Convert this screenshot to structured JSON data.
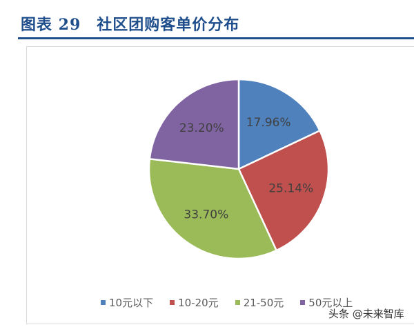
{
  "header": {
    "title": "图表 29　社区团购客单价分布"
  },
  "watermark": "头条 @未来智库",
  "chart_data": {
    "type": "pie",
    "title": "",
    "categories": [
      "10元以下",
      "10-20元",
      "21-50元",
      "50元以上"
    ],
    "values": [
      17.96,
      25.14,
      33.7,
      23.2
    ],
    "labels": [
      "17.96%",
      "25.14%",
      "33.70%",
      "23.20%"
    ],
    "colors": [
      "#4f81bd",
      "#c0504d",
      "#9bbb59",
      "#8064a2"
    ],
    "start": "top, clockwise",
    "legend": "bottom"
  }
}
